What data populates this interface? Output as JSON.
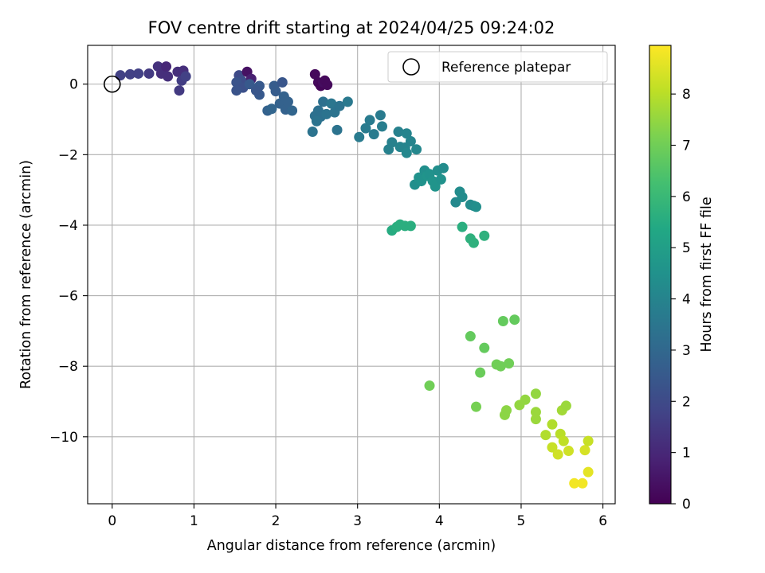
{
  "chart_data": {
    "type": "scatter",
    "title": "FOV centre drift starting at 2024/04/25 09:24:02",
    "xlabel": "Angular distance from reference (arcmin)",
    "ylabel": "Rotation from reference (arcmin)",
    "xlim": [
      -0.3,
      6.15
    ],
    "ylim": [
      -11.9,
      1.1
    ],
    "x_ticks": [
      0,
      1,
      2,
      3,
      4,
      5,
      6
    ],
    "x_tick_labels": [
      "0",
      "1",
      "2",
      "3",
      "4",
      "5",
      "6"
    ],
    "y_ticks": [
      0,
      -2,
      -4,
      -6,
      -8,
      -10
    ],
    "y_tick_labels": [
      "0",
      "−2",
      "−4",
      "−6",
      "−8",
      "−10"
    ],
    "grid": true,
    "colormap": "viridis",
    "colorbar": {
      "label": "Hours from first FF file",
      "range": [
        0,
        8.95
      ],
      "ticks": [
        0,
        1,
        2,
        3,
        4,
        5,
        6,
        7,
        8
      ],
      "tick_labels": [
        "0",
        "1",
        "2",
        "3",
        "4",
        "5",
        "6",
        "7",
        "8"
      ]
    },
    "legend": {
      "position": "top-right",
      "entries": [
        {
          "label": "Reference platepar",
          "marker": "open-circle",
          "x": 0,
          "y": 0
        }
      ]
    },
    "points": [
      [
        0.1,
        0.25,
        1.7
      ],
      [
        0.22,
        0.28,
        1.7
      ],
      [
        0.32,
        0.3,
        1.7
      ],
      [
        0.45,
        0.3,
        1.5
      ],
      [
        0.56,
        0.5,
        1.3
      ],
      [
        0.6,
        0.3,
        1.2
      ],
      [
        0.66,
        0.5,
        1.0
      ],
      [
        0.68,
        0.22,
        1.2
      ],
      [
        0.8,
        0.35,
        1.2
      ],
      [
        0.87,
        0.38,
        1.2
      ],
      [
        0.85,
        0.1,
        1.6
      ],
      [
        0.82,
        -0.18,
        1.5
      ],
      [
        0.9,
        0.22,
        1.7
      ],
      [
        1.55,
        0.25,
        2.0
      ],
      [
        1.58,
        0.1,
        2.1
      ],
      [
        1.52,
        0.05,
        2.3
      ],
      [
        1.6,
        -0.1,
        2.2
      ],
      [
        1.52,
        -0.18,
        2.3
      ],
      [
        1.65,
        0.35,
        0.4
      ],
      [
        1.7,
        0.15,
        0.8
      ],
      [
        1.68,
        0.0,
        2.5
      ],
      [
        1.8,
        -0.05,
        2.5
      ],
      [
        1.8,
        -0.3,
        2.5
      ],
      [
        1.76,
        -0.18,
        2.4
      ],
      [
        1.9,
        -0.75,
        2.8
      ],
      [
        1.95,
        -0.7,
        2.9
      ],
      [
        1.98,
        -0.05,
        2.6
      ],
      [
        2.0,
        -0.2,
        2.6
      ],
      [
        2.05,
        -0.55,
        2.8
      ],
      [
        2.08,
        0.05,
        2.4
      ],
      [
        2.1,
        -0.35,
        2.8
      ],
      [
        2.12,
        -0.72,
        2.8
      ],
      [
        2.2,
        -0.75,
        2.9
      ],
      [
        2.15,
        -0.5,
        2.8
      ],
      [
        2.48,
        0.28,
        0.2
      ],
      [
        2.52,
        0.05,
        0.2
      ],
      [
        2.55,
        -0.05,
        0.1
      ],
      [
        2.58,
        0.05,
        0.3
      ],
      [
        2.6,
        0.1,
        0.2
      ],
      [
        2.63,
        -0.02,
        0.2
      ],
      [
        2.52,
        -0.75,
        3.3
      ],
      [
        2.48,
        -0.9,
        3.3
      ],
      [
        2.55,
        -0.92,
        3.3
      ],
      [
        2.5,
        -1.05,
        3.4
      ],
      [
        2.45,
        -1.35,
        3.4
      ],
      [
        2.58,
        -0.5,
        3.3
      ],
      [
        2.62,
        -0.85,
        3.4
      ],
      [
        2.68,
        -0.55,
        3.5
      ],
      [
        2.72,
        -0.8,
        3.4
      ],
      [
        2.75,
        -1.3,
        3.4
      ],
      [
        2.78,
        -0.62,
        3.4
      ],
      [
        2.88,
        -0.5,
        3.6
      ],
      [
        3.02,
        -1.5,
        3.7
      ],
      [
        3.1,
        -1.25,
        3.7
      ],
      [
        3.15,
        -1.02,
        3.7
      ],
      [
        3.2,
        -1.42,
        3.7
      ],
      [
        3.28,
        -0.88,
        3.7
      ],
      [
        3.3,
        -1.2,
        3.8
      ],
      [
        3.38,
        -1.85,
        3.9
      ],
      [
        3.42,
        -1.65,
        3.9
      ],
      [
        3.5,
        -1.35,
        3.9
      ],
      [
        3.52,
        -1.78,
        4.0
      ],
      [
        3.58,
        -1.8,
        4.0
      ],
      [
        3.6,
        -1.95,
        4.1
      ],
      [
        3.6,
        -1.4,
        4.0
      ],
      [
        3.65,
        -1.62,
        4.0
      ],
      [
        3.72,
        -1.85,
        4.1
      ],
      [
        3.7,
        -2.85,
        4.4
      ],
      [
        3.75,
        -2.65,
        4.5
      ],
      [
        3.78,
        -2.75,
        4.5
      ],
      [
        3.82,
        -2.45,
        4.4
      ],
      [
        3.85,
        -2.6,
        4.6
      ],
      [
        3.88,
        -2.55,
        4.5
      ],
      [
        3.92,
        -2.75,
        4.6
      ],
      [
        3.95,
        -2.9,
        4.6
      ],
      [
        3.98,
        -2.45,
        4.4
      ],
      [
        4.02,
        -2.7,
        4.5
      ],
      [
        4.05,
        -2.38,
        4.3
      ],
      [
        4.2,
        -3.35,
        4.2
      ],
      [
        4.25,
        -3.05,
        4.3
      ],
      [
        4.28,
        -3.2,
        4.3
      ],
      [
        4.38,
        -3.42,
        4.3
      ],
      [
        4.42,
        -3.45,
        4.3
      ],
      [
        4.45,
        -3.48,
        4.4
      ],
      [
        3.42,
        -4.15,
        5.5
      ],
      [
        3.48,
        -4.05,
        5.6
      ],
      [
        3.52,
        -3.98,
        5.6
      ],
      [
        3.58,
        -4.02,
        5.6
      ],
      [
        3.65,
        -4.02,
        5.6
      ],
      [
        4.28,
        -4.05,
        5.6
      ],
      [
        4.38,
        -4.38,
        5.7
      ],
      [
        4.42,
        -4.5,
        5.7
      ],
      [
        4.55,
        -4.3,
        5.7
      ],
      [
        4.38,
        -7.15,
        6.8
      ],
      [
        4.55,
        -7.48,
        6.8
      ],
      [
        4.5,
        -8.18,
        6.9
      ],
      [
        4.45,
        -9.15,
        7.1
      ],
      [
        3.88,
        -8.55,
        7.0
      ],
      [
        4.7,
        -7.95,
        7.0
      ],
      [
        4.75,
        -8.0,
        7.0
      ],
      [
        4.78,
        -6.72,
        6.8
      ],
      [
        4.85,
        -7.92,
        7.0
      ],
      [
        4.92,
        -6.68,
        6.8
      ],
      [
        4.8,
        -9.38,
        7.4
      ],
      [
        4.82,
        -9.25,
        7.4
      ],
      [
        4.98,
        -9.1,
        7.5
      ],
      [
        5.05,
        -8.95,
        7.5
      ],
      [
        5.18,
        -8.78,
        7.5
      ],
      [
        5.18,
        -9.3,
        7.6
      ],
      [
        5.18,
        -9.5,
        7.6
      ],
      [
        5.3,
        -9.95,
        7.9
      ],
      [
        5.38,
        -9.65,
        7.9
      ],
      [
        5.5,
        -9.25,
        7.7
      ],
      [
        5.55,
        -9.12,
        7.6
      ],
      [
        5.48,
        -9.92,
        8.0
      ],
      [
        5.52,
        -10.12,
        8.1
      ],
      [
        5.58,
        -10.4,
        8.3
      ],
      [
        5.38,
        -10.3,
        8.2
      ],
      [
        5.45,
        -10.5,
        8.3
      ],
      [
        5.78,
        -10.38,
        8.4
      ],
      [
        5.82,
        -10.12,
        8.2
      ],
      [
        5.65,
        -11.32,
        8.8
      ],
      [
        5.75,
        -11.32,
        8.8
      ],
      [
        5.82,
        -11.0,
        8.6
      ]
    ]
  }
}
